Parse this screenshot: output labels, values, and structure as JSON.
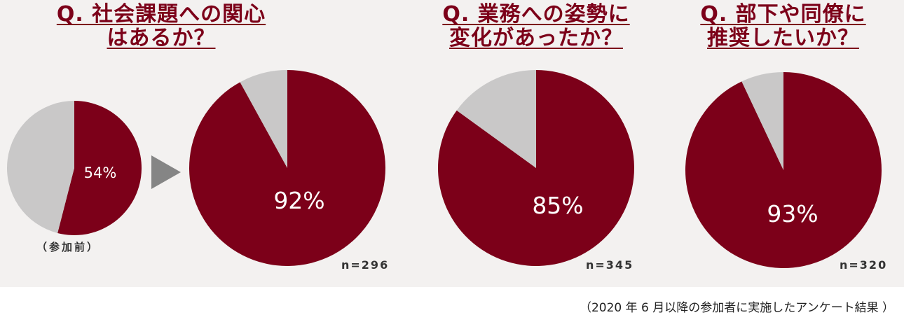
{
  "colors": {
    "accent": "#7c0019",
    "rest": "#c9c8c8",
    "panel": "#f3f1f0",
    "arrow": "#858585"
  },
  "questions": [
    {
      "title_line1": "Q. 社会課題への関心",
      "title_line2": "はあるか？"
    },
    {
      "title_line1": "Q. 業務への姿勢に",
      "title_line2": "変化があったか？"
    },
    {
      "title_line1": "Q. 部下や同僚に",
      "title_line2": "推奨したいか？"
    }
  ],
  "before_label": "（参加前）",
  "footnote": "（2020 年 6 月以降の参加者に実施したアンケート結果 ）",
  "arrow_icon": "triangle-right-icon",
  "chart_data": [
    {
      "type": "pie",
      "slices": [
        {
          "label": "54%",
          "value": 54
        },
        {
          "value": 46
        }
      ]
    },
    {
      "type": "pie",
      "slices": [
        {
          "label": "92%",
          "value": 92
        },
        {
          "value": 8
        }
      ],
      "n": "n=296"
    },
    {
      "type": "pie",
      "slices": [
        {
          "label": "85%",
          "value": 85
        },
        {
          "value": 15
        }
      ],
      "n": "n=345"
    },
    {
      "type": "pie",
      "slices": [
        {
          "label": "93%",
          "value": 93
        },
        {
          "value": 7
        }
      ],
      "n": "n=320"
    }
  ]
}
